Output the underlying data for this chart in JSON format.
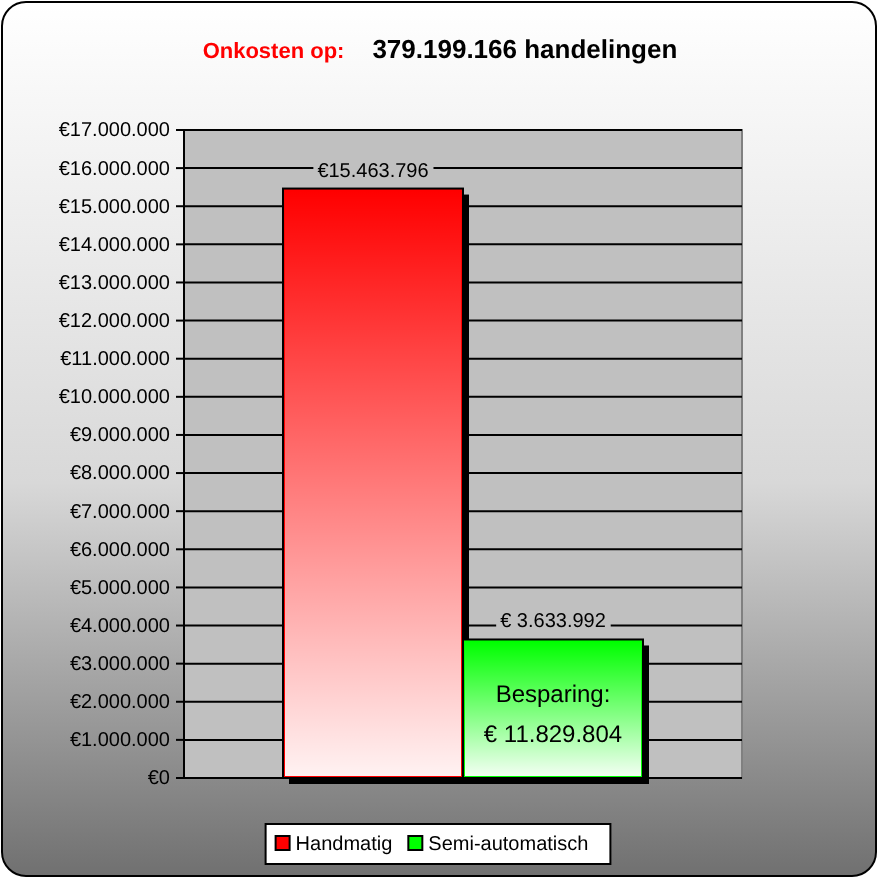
{
  "chart_data": {
    "type": "bar",
    "title": "Onkosten op:",
    "subtitle": "379.199.166 handelingen",
    "categories": [
      null
    ],
    "series": [
      {
        "name": "Handmatig",
        "color": "#ff0000",
        "values": [
          15463796
        ],
        "value_labels": [
          "€15.463.796"
        ]
      },
      {
        "name": "Semi-automatisch",
        "color": "#00ff00",
        "values": [
          3633992
        ],
        "value_labels": [
          "€ 3.633.992"
        ]
      }
    ],
    "ylim": [
      0,
      17000000
    ],
    "yticks": [
      {
        "value": 0,
        "label": "€0"
      },
      {
        "value": 1000000,
        "label": "€1.000.000"
      },
      {
        "value": 2000000,
        "label": "€2.000.000"
      },
      {
        "value": 3000000,
        "label": "€3.000.000"
      },
      {
        "value": 4000000,
        "label": "€4.000.000"
      },
      {
        "value": 5000000,
        "label": "€5.000.000"
      },
      {
        "value": 6000000,
        "label": "€6.000.000"
      },
      {
        "value": 7000000,
        "label": "€7.000.000"
      },
      {
        "value": 8000000,
        "label": "€8.000.000"
      },
      {
        "value": 9000000,
        "label": "€9.000.000"
      },
      {
        "value": 10000000,
        "label": "€10.000.000"
      },
      {
        "value": 11000000,
        "label": "€11.000.000"
      },
      {
        "value": 12000000,
        "label": "€12.000.000"
      },
      {
        "value": 13000000,
        "label": "€13.000.000"
      },
      {
        "value": 14000000,
        "label": "€14.000.000"
      },
      {
        "value": 15000000,
        "label": "€15.000.000"
      },
      {
        "value": 16000000,
        "label": "€16.000.000"
      },
      {
        "value": 17000000,
        "label": "€17.000.000"
      }
    ],
    "grid": "y",
    "legend": "bottom",
    "annotations": [
      "Besparing: € 11.829.804"
    ]
  }
}
